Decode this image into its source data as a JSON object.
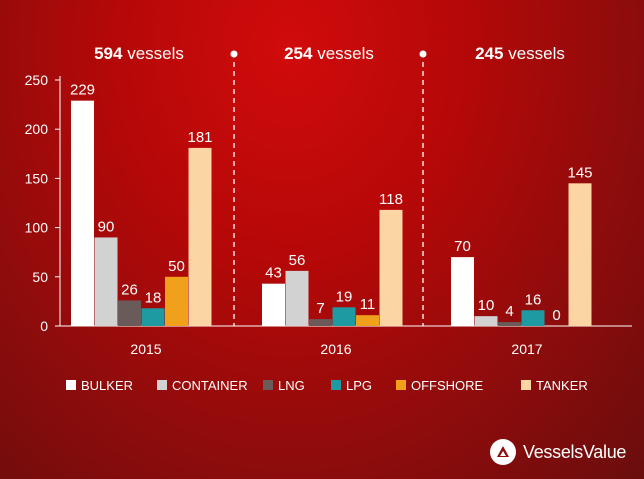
{
  "chart_data": {
    "type": "bar",
    "ylim": [
      0,
      250
    ],
    "yticks": [
      0,
      50,
      100,
      150,
      200,
      250
    ],
    "groups": [
      {
        "label": "2015",
        "count": "594",
        "count_suffix": " vessels",
        "values": [
          229,
          90,
          26,
          18,
          50,
          181
        ]
      },
      {
        "label": "2016",
        "count": "254",
        "count_suffix": " vessels",
        "values": [
          43,
          56,
          7,
          19,
          11,
          118
        ]
      },
      {
        "label": "2017",
        "count": "245",
        "count_suffix": " vessels",
        "values": [
          70,
          10,
          4,
          16,
          0,
          145
        ]
      }
    ],
    "series": [
      {
        "name": "BULKER",
        "color": "#ffffff"
      },
      {
        "name": "CONTAINER",
        "color": "#d2d2d2"
      },
      {
        "name": "LNG",
        "color": "#6a5a5a"
      },
      {
        "name": "LPG",
        "color": "#1e9aa3"
      },
      {
        "name": "OFFSHORE",
        "color": "#f0a01a"
      },
      {
        "name": "TANKER",
        "color": "#fcd5a4"
      }
    ],
    "legend_position": "bottom",
    "grid": false
  },
  "brand": {
    "name": "VesselsValue"
  }
}
